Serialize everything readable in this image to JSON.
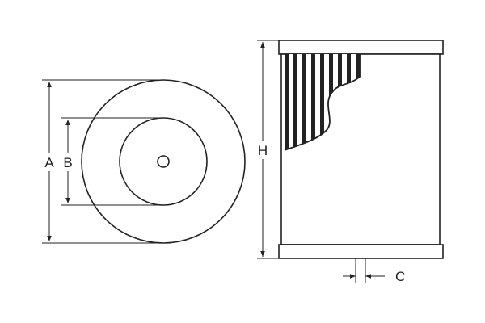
{
  "diagram": {
    "labels": {
      "outer_diameter": "A",
      "inner_diameter": "B",
      "height": "H",
      "thread": "C"
    },
    "colors": {
      "stroke": "#222222",
      "background": "#ffffff",
      "pleat_fill": "#ffffff"
    }
  }
}
